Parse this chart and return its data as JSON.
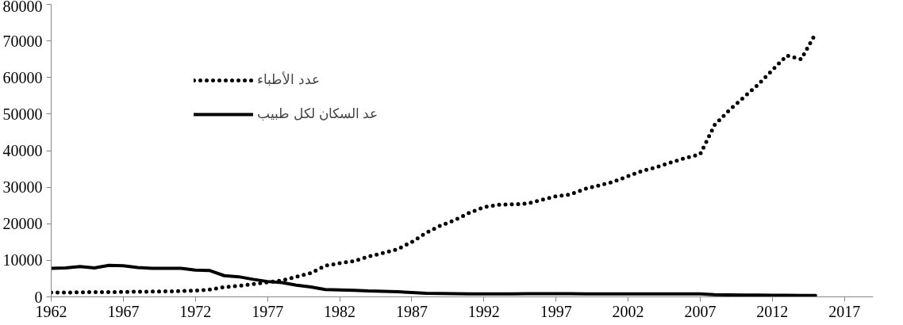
{
  "chart_data": {
    "type": "line",
    "x": [
      1962,
      1963,
      1964,
      1965,
      1966,
      1967,
      1968,
      1969,
      1970,
      1971,
      1972,
      1973,
      1974,
      1975,
      1976,
      1977,
      1978,
      1979,
      1980,
      1981,
      1982,
      1983,
      1984,
      1985,
      1986,
      1987,
      1988,
      1989,
      1990,
      1991,
      1992,
      1993,
      1994,
      1995,
      1996,
      1997,
      1998,
      1999,
      2000,
      2001,
      2002,
      2003,
      2004,
      2005,
      2006,
      2007,
      2008,
      2009,
      2010,
      2011,
      2012,
      2013,
      2014,
      2015
    ],
    "series": [
      {
        "name": "عدد الأطباء",
        "color": "#000000",
        "line_style": "dotted",
        "values": [
          1200,
          1200,
          1250,
          1300,
          1300,
          1350,
          1400,
          1450,
          1500,
          1600,
          1700,
          2000,
          2700,
          3000,
          3500,
          4000,
          4500,
          5500,
          6500,
          8500,
          9200,
          9800,
          11000,
          12000,
          13000,
          15000,
          17500,
          19500,
          21000,
          23000,
          24500,
          25200,
          25300,
          25500,
          26500,
          27500,
          28000,
          29500,
          30500,
          31500,
          33000,
          34500,
          35500,
          36800,
          38000,
          39000,
          47000,
          51000,
          54500,
          58000,
          62000,
          66000,
          65000,
          72000
        ]
      },
      {
        "name": "عد السكان لكل طبيب",
        "color": "#000000",
        "line_style": "solid",
        "values": [
          7800,
          7900,
          8300,
          7900,
          8600,
          8500,
          8000,
          7800,
          7800,
          7800,
          7300,
          7200,
          5800,
          5500,
          4800,
          4200,
          3900,
          3200,
          2700,
          2000,
          1900,
          1800,
          1600,
          1500,
          1400,
          1200,
          1000,
          900,
          850,
          800,
          800,
          800,
          800,
          850,
          850,
          850,
          850,
          800,
          800,
          800,
          800,
          800,
          800,
          800,
          800,
          800,
          600,
          550,
          500,
          500,
          450,
          450,
          400,
          400
        ]
      }
    ],
    "xlim": [
      1962,
      2019
    ],
    "xticks": [
      1962,
      1967,
      1972,
      1977,
      1982,
      1987,
      1992,
      1997,
      2002,
      2007,
      2012,
      2017
    ],
    "ylim": [
      0,
      80000
    ],
    "yticks": [
      0,
      10000,
      20000,
      30000,
      40000,
      50000,
      60000,
      70000,
      80000
    ],
    "grid": false,
    "legend": "top left"
  }
}
